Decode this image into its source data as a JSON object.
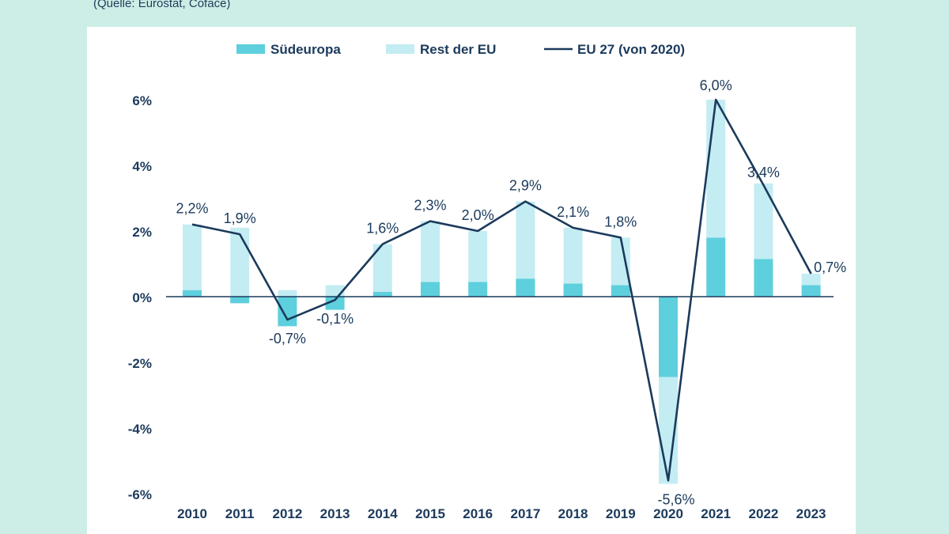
{
  "source_note": "(Quelle: Eurostat, Coface)",
  "colors": {
    "suedeuropa": "#5ecfdd",
    "rest": "#c3edf3",
    "line": "#1b3a5c",
    "axis_text": "#1b3a5c",
    "background": "#cdeee6"
  },
  "chart_data": {
    "type": "bar",
    "stacked": true,
    "categories": [
      "2010",
      "2011",
      "2012",
      "2013",
      "2014",
      "2015",
      "2016",
      "2017",
      "2018",
      "2019",
      "2020",
      "2021",
      "2022",
      "2023"
    ],
    "series": [
      {
        "name": "Südeuropa",
        "type": "bar",
        "values": [
          0.2,
          -0.2,
          -0.9,
          -0.4,
          0.15,
          0.45,
          0.45,
          0.55,
          0.4,
          0.35,
          -2.45,
          1.8,
          1.15,
          0.35
        ]
      },
      {
        "name": "Rest der EU",
        "type": "bar",
        "values": [
          2.0,
          2.1,
          0.2,
          0.35,
          1.45,
          1.85,
          1.55,
          2.35,
          1.7,
          1.45,
          -3.25,
          4.2,
          2.3,
          0.35
        ]
      },
      {
        "name": "EU 27 (von 2020)",
        "type": "line",
        "values": [
          2.2,
          1.9,
          -0.7,
          -0.1,
          1.6,
          2.3,
          2.0,
          2.9,
          2.1,
          1.8,
          -5.6,
          6.0,
          3.4,
          0.7
        ]
      }
    ],
    "data_labels": [
      "2,2%",
      "1,9%",
      "-0,7%",
      "-0,1%",
      "1,6%",
      "2,3%",
      "2,0%",
      "2,9%",
      "2,1%",
      "1,8%",
      "-5,6%",
      "6,0%",
      "3,4%",
      "0,7%"
    ],
    "y_ticks": [
      6,
      4,
      2,
      0,
      -2,
      -4,
      -6
    ],
    "y_tick_labels": [
      "6%",
      "4%",
      "2%",
      "0%",
      "-2%",
      "-4%",
      "-6%"
    ],
    "ylim": [
      -6,
      6
    ],
    "legend": [
      "Südeuropa",
      "Rest der EU",
      "EU 27 (von 2020)"
    ],
    "legend_position": "top-center",
    "grid": false
  }
}
